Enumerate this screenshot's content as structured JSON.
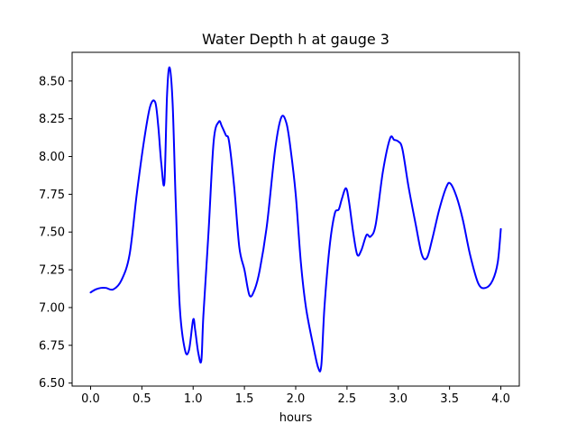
{
  "chart_data": {
    "type": "line",
    "title": "Water Depth h at gauge 3",
    "xlabel": "hours",
    "ylabel": "",
    "xlim": [
      -0.18,
      4.18
    ],
    "ylim": [
      6.48,
      8.69
    ],
    "xticks": [
      0.0,
      0.5,
      1.0,
      1.5,
      2.0,
      2.5,
      3.0,
      3.5,
      4.0
    ],
    "xtick_labels": [
      "0.0",
      "0.5",
      "1.0",
      "1.5",
      "2.0",
      "2.5",
      "3.0",
      "3.5",
      "4.0"
    ],
    "yticks": [
      6.5,
      6.75,
      7.0,
      7.25,
      7.5,
      7.75,
      8.0,
      8.25,
      8.5
    ],
    "ytick_labels": [
      "6.50",
      "6.75",
      "7.00",
      "7.25",
      "7.50",
      "7.75",
      "8.00",
      "8.25",
      "8.50"
    ],
    "grid": false,
    "series": [
      {
        "color": "#0000ff",
        "x": [
          0.0,
          0.05,
          0.1,
          0.15,
          0.22,
          0.3,
          0.38,
          0.45,
          0.52,
          0.58,
          0.63,
          0.66,
          0.69,
          0.72,
          0.745,
          0.77,
          0.8,
          0.83,
          0.87,
          0.92,
          0.96,
          1.0,
          1.02,
          1.05,
          1.08,
          1.1,
          1.15,
          1.2,
          1.25,
          1.28,
          1.32,
          1.35,
          1.4,
          1.45,
          1.5,
          1.55,
          1.6,
          1.65,
          1.72,
          1.8,
          1.86,
          1.91,
          1.95,
          2.0,
          2.05,
          2.1,
          2.17,
          2.22,
          2.25,
          2.28,
          2.33,
          2.38,
          2.42,
          2.45,
          2.49,
          2.52,
          2.56,
          2.6,
          2.64,
          2.69,
          2.73,
          2.78,
          2.85,
          2.92,
          2.96,
          3.0,
          3.04,
          3.1,
          3.17,
          3.23,
          3.28,
          3.33,
          3.4,
          3.47,
          3.51,
          3.57,
          3.63,
          3.7,
          3.78,
          3.85,
          3.92,
          3.97,
          4.0
        ],
        "y": [
          7.1,
          7.12,
          7.13,
          7.13,
          7.12,
          7.18,
          7.35,
          7.75,
          8.1,
          8.33,
          8.36,
          8.2,
          7.95,
          7.83,
          8.4,
          8.59,
          8.35,
          7.7,
          7.0,
          6.72,
          6.72,
          6.92,
          6.85,
          6.7,
          6.65,
          6.95,
          7.5,
          8.1,
          8.23,
          8.2,
          8.14,
          8.1,
          7.8,
          7.4,
          7.25,
          7.08,
          7.12,
          7.25,
          7.55,
          8.05,
          8.26,
          8.22,
          8.05,
          7.75,
          7.3,
          7.0,
          6.75,
          6.6,
          6.62,
          7.0,
          7.4,
          7.62,
          7.65,
          7.72,
          7.79,
          7.7,
          7.5,
          7.35,
          7.38,
          7.48,
          7.47,
          7.55,
          7.9,
          8.12,
          8.11,
          8.1,
          8.05,
          7.8,
          7.55,
          7.35,
          7.33,
          7.45,
          7.65,
          7.8,
          7.82,
          7.73,
          7.58,
          7.35,
          7.16,
          7.13,
          7.18,
          7.3,
          7.52
        ]
      }
    ]
  }
}
